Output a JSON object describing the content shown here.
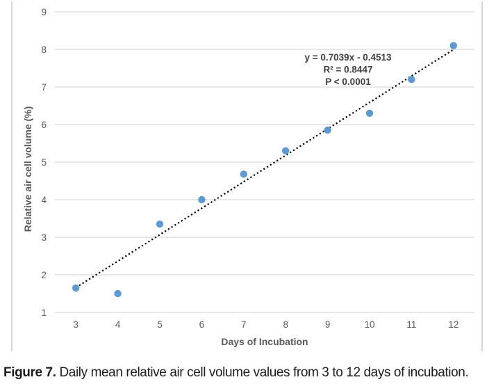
{
  "figure": {
    "caption_label": "Figure 7.",
    "caption_text": " Daily mean relative air cell volume values from 3 to 12 days of incubation."
  },
  "chart_data": {
    "type": "scatter",
    "x": [
      3,
      4,
      5,
      6,
      7,
      8,
      9,
      10,
      11,
      12
    ],
    "y": [
      1.65,
      1.5,
      3.35,
      4.0,
      4.68,
      5.3,
      5.85,
      6.3,
      7.2,
      8.1
    ],
    "xlabel": "Days of Incubation",
    "ylabel": "Relative air cell volume (%)",
    "xlim": [
      2.5,
      12.5
    ],
    "ylim": [
      1,
      9
    ],
    "x_ticks": [
      3,
      4,
      5,
      6,
      7,
      8,
      9,
      10,
      11,
      12
    ],
    "y_ticks": [
      1,
      2,
      3,
      4,
      5,
      6,
      7,
      8,
      9
    ],
    "grid": "horizontal-only",
    "legend": "none",
    "trendline": {
      "slope": 0.7039,
      "intercept": -0.4513,
      "x_start": 3,
      "x_end": 12,
      "style": "dotted",
      "color": "#000000"
    },
    "annotation": [
      "y = 0.7039x - 0.4513",
      "R² = 0.8447",
      "P < 0.0001"
    ],
    "colors": {
      "marker": "#5b9bd5",
      "grid": "#d9d9d9",
      "tick_text": "#595959",
      "axis_title_text": "#595959",
      "annotation_text": "#404040"
    }
  }
}
